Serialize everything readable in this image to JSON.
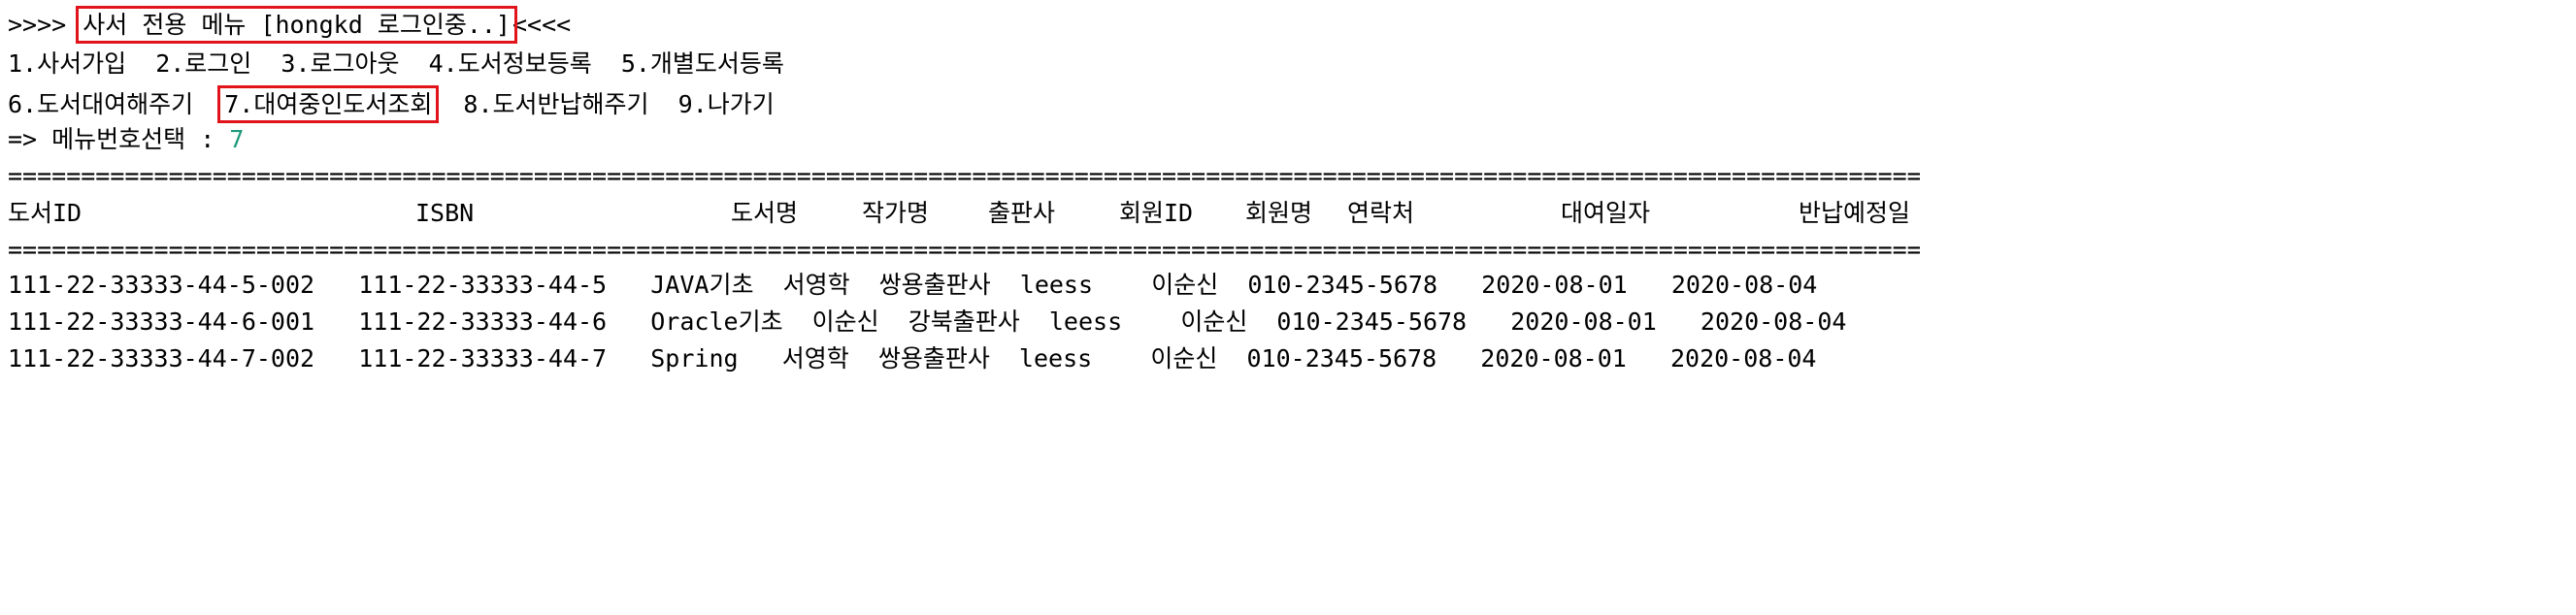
{
  "header": {
    "prefix": ">>>> ",
    "title": "사서 전용 메뉴 [hongkd 로그인중..]",
    "suffix": "<<<<"
  },
  "menu": {
    "line1": "1.사서가입  2.로그인  3.로그아웃  4.도서정보등록  5.개별도서등록",
    "line2_a": "6.도서대여해주기  ",
    "line2_selected": "7.대여중인도서조회",
    "line2_b": "  8.도서반납해주기  9.나가기"
  },
  "prompt": {
    "label": "=> 메뉴번호선택 : ",
    "value": "7"
  },
  "separator": "====================================================================================================================================================================================================",
  "table": {
    "headers": [
      "도서ID",
      "ISBN",
      "도서명",
      "작가명",
      "출판사",
      "회원ID",
      "회원명",
      "연락처",
      "대여일자",
      "반납예정일"
    ],
    "rows": [
      {
        "text": "111-22-33333-44-5-002   111-22-33333-44-5   JAVA기초  서영학  쌍용출판사  leess    이순신  010-2345-5678   2020-08-01   2020-08-04"
      },
      {
        "text": "111-22-33333-44-6-001   111-22-33333-44-6   Oracle기초  이순신  강북출판사  leess    이순신  010-2345-5678   2020-08-01   2020-08-04"
      },
      {
        "text": "111-22-33333-44-7-002   111-22-33333-44-7   Spring   서영학  쌍용출판사  leess    이순신  010-2345-5678   2020-08-01   2020-08-04"
      }
    ]
  }
}
